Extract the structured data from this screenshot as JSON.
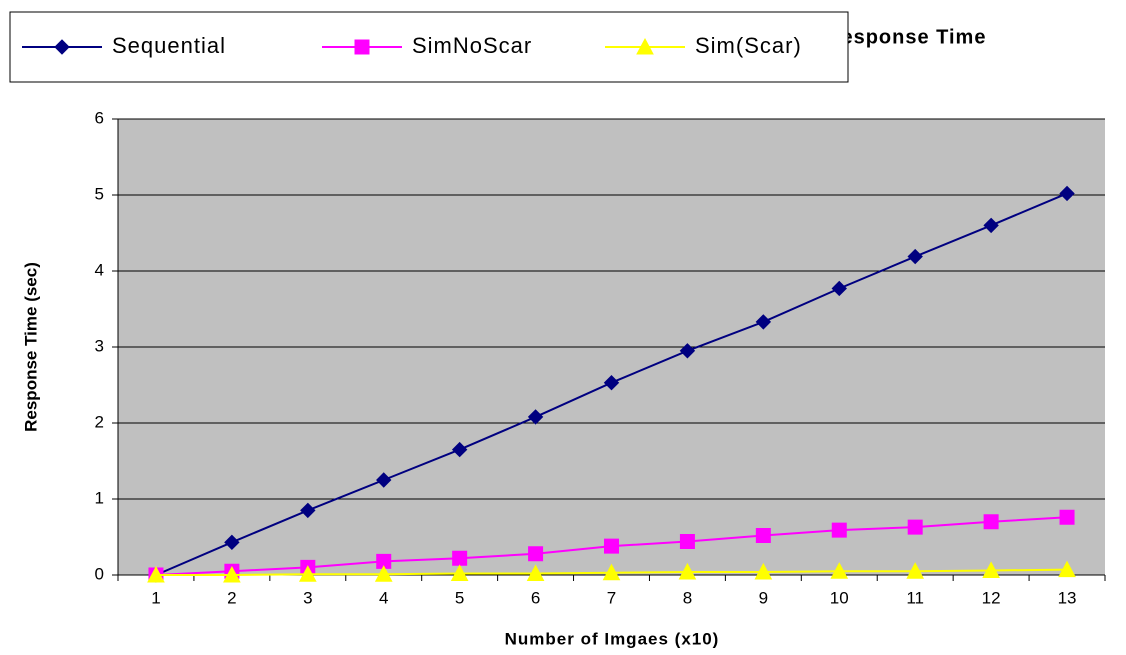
{
  "chart_data": {
    "type": "line",
    "title": "Response Time",
    "xlabel": "Number of Imgaes (x10)",
    "ylabel": "Response Time (sec)",
    "categories": [
      1,
      2,
      3,
      4,
      5,
      6,
      7,
      8,
      9,
      10,
      11,
      12,
      13
    ],
    "series": [
      {
        "name": "Sequential",
        "color": "#000080",
        "marker": "diamond",
        "values": [
          0,
          0.43,
          0.85,
          1.25,
          1.65,
          2.08,
          2.53,
          2.95,
          3.33,
          3.77,
          4.19,
          4.6,
          5.02
        ]
      },
      {
        "name": "SimNoScar",
        "color": "#ff00ff",
        "marker": "square",
        "values": [
          0,
          0.05,
          0.1,
          0.18,
          0.22,
          0.28,
          0.38,
          0.44,
          0.52,
          0.59,
          0.63,
          0.7,
          0.76
        ]
      },
      {
        "name": "Sim(Scar)",
        "color": "#ffff00",
        "marker": "triangle",
        "values": [
          0,
          0,
          0.01,
          0.01,
          0.02,
          0.02,
          0.03,
          0.04,
          0.04,
          0.05,
          0.05,
          0.06,
          0.07
        ]
      }
    ],
    "ylim": [
      0,
      6
    ],
    "yticks": [
      0,
      1,
      2,
      3,
      4,
      5,
      6
    ],
    "grid": true,
    "legend": "top-left",
    "plot_background": "#c0c0c0"
  }
}
